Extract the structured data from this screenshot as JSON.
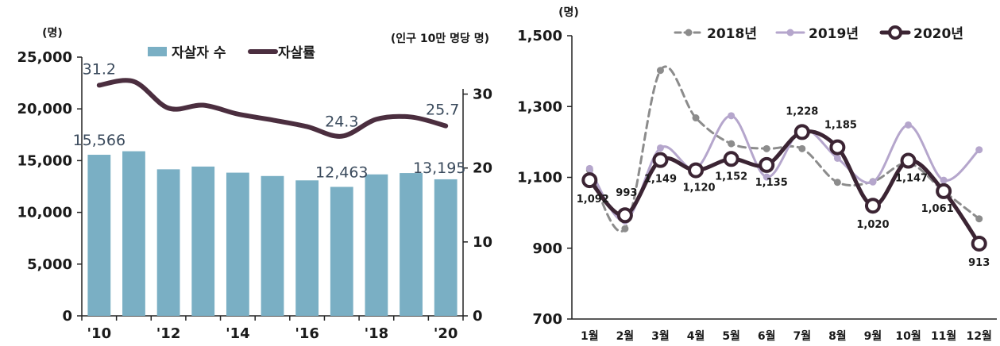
{
  "chart_data": [
    {
      "type": "bar",
      "categories": [
        "'10",
        "'11",
        "'12",
        "'13",
        "'14",
        "'15",
        "'16",
        "'17",
        "'18",
        "'19",
        "'20"
      ],
      "x_tick_labels": [
        "'10",
        "'12",
        "'14",
        "'16",
        "'18",
        "'20"
      ],
      "ylabel_left": "(명)",
      "ylabel_right": "(인구 10만 명당 명)",
      "ylim_left": [
        0,
        25000
      ],
      "ylim_right": [
        0,
        35
      ],
      "y_ticks_left": [
        "0",
        "5,000",
        "10,000",
        "15,000",
        "20,000",
        "25,000"
      ],
      "y_ticks_right": [
        "0",
        "10",
        "20",
        "30"
      ],
      "legend_position": "top",
      "series": [
        {
          "name": "자살자 수",
          "type": "bar",
          "axis": "left",
          "color": "#7aafc4",
          "values": [
            15566,
            15906,
            14160,
            14427,
            13836,
            13513,
            13092,
            12463,
            13670,
            13799,
            13195
          ]
        },
        {
          "name": "자살률",
          "type": "line",
          "axis": "right",
          "color": "#4b2e3f",
          "values": [
            31.2,
            31.7,
            28.1,
            28.5,
            27.3,
            26.5,
            25.6,
            24.3,
            26.6,
            26.9,
            25.7
          ]
        }
      ],
      "annotations": [
        {
          "series": 1,
          "index": 0,
          "label": "31.2"
        },
        {
          "series": 0,
          "index": 0,
          "label": "15,566"
        },
        {
          "series": 1,
          "index": 7,
          "label": "24.3"
        },
        {
          "series": 0,
          "index": 7,
          "label": "12,463"
        },
        {
          "series": 1,
          "index": 10,
          "label": "25.7"
        },
        {
          "series": 0,
          "index": 10,
          "label": "13,195"
        }
      ]
    },
    {
      "type": "line",
      "categories": [
        "1월",
        "2월",
        "3월",
        "4월",
        "5월",
        "6월",
        "7월",
        "8월",
        "9월",
        "10월",
        "11월",
        "12월"
      ],
      "ylabel": "(명)",
      "ylim": [
        700,
        1500
      ],
      "y_ticks": [
        "700",
        "900",
        "1,100",
        "1,300",
        "1,500"
      ],
      "legend_position": "top",
      "series": [
        {
          "name": "2018년",
          "color": "#8c8c8c",
          "style": "dashed",
          "values": [
            1121,
            955,
            1402,
            1268,
            1195,
            1181,
            1181,
            1086,
            1088,
            1140,
            1061,
            983
          ]
        },
        {
          "name": "2019년",
          "color": "#b5a6cc",
          "style": "solid",
          "values": [
            1125,
            977,
            1183,
            1125,
            1274,
            1101,
            1235,
            1154,
            1087,
            1248,
            1092,
            1178
          ]
        },
        {
          "name": "2020년",
          "color": "#3b2433",
          "style": "solid",
          "values": [
            1092,
            993,
            1149,
            1120,
            1152,
            1135,
            1228,
            1185,
            1020,
            1147,
            1061,
            913
          ],
          "data_labels": [
            "1,092",
            "993",
            "1,149",
            "1,120",
            "1,152",
            "1,135",
            "1,228",
            "1,185",
            "1,020",
            "1,147",
            "1,061",
            "913"
          ]
        }
      ]
    }
  ]
}
